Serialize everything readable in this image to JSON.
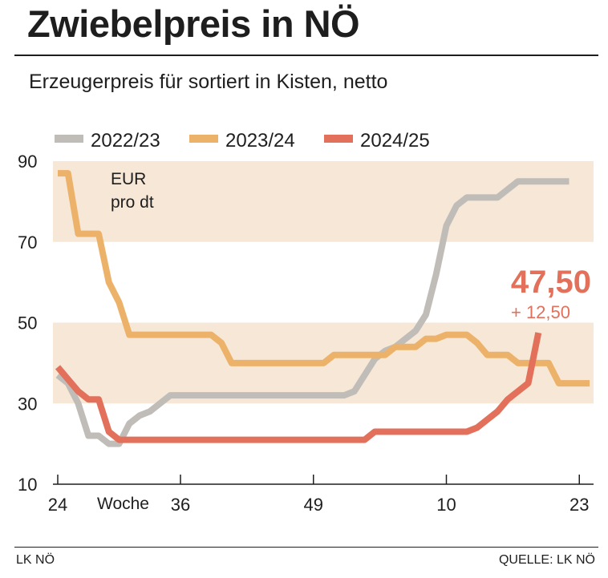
{
  "header": {
    "title": "Zwiebelpreis in NÖ",
    "subtitle": "Erzeugerpreis für sortiert in Kisten, netto"
  },
  "footer": {
    "left": "LK NÖ",
    "right": "QUELLE: LK NÖ"
  },
  "colors": {
    "band": "#f6e7d7",
    "axis": "#1e1e1e",
    "s2022": "#c0bdb9",
    "s2023": "#ecb26a",
    "s2024": "#e2705a"
  },
  "chart_data": {
    "type": "line",
    "title": "Zwiebelpreis in NÖ",
    "subtitle": "Erzeugerpreis für sortiert in Kisten, netto",
    "unit_label": [
      "EUR",
      "pro dt"
    ],
    "xlabel": "Woche",
    "ylabel": "EUR pro dt",
    "ylim": [
      10,
      90
    ],
    "yticks": [
      10,
      30,
      50,
      70,
      90
    ],
    "shaded_bands": [
      [
        30,
        50
      ],
      [
        70,
        90
      ]
    ],
    "x_ticks": [
      {
        "label": "24",
        "index": 0
      },
      {
        "label": "36",
        "index": 12
      },
      {
        "label": "49",
        "index": 25
      },
      {
        "label": "10",
        "index": 38
      },
      {
        "label": "23",
        "index": 51
      }
    ],
    "x_range": [
      0,
      52
    ],
    "legend_position": "top",
    "series": [
      {
        "name": "2022/23",
        "color": "#c0bdb9",
        "x": [
          0,
          1,
          2,
          3,
          4,
          5,
          6,
          7,
          8,
          9,
          10,
          11,
          12,
          13,
          14,
          15,
          16,
          17,
          18,
          19,
          20,
          21,
          22,
          23,
          24,
          25,
          26,
          27,
          28,
          29,
          30,
          31,
          32,
          33,
          34,
          35,
          36,
          37,
          38,
          39,
          40,
          41,
          42,
          43,
          44,
          45,
          46,
          47,
          48,
          49,
          50
        ],
        "values": [
          37,
          35,
          30,
          22,
          22,
          20,
          20,
          25,
          27,
          28,
          30,
          32,
          32,
          32,
          32,
          32,
          32,
          32,
          32,
          32,
          32,
          32,
          32,
          32,
          32,
          32,
          32,
          32,
          32,
          33,
          37,
          41,
          43,
          44,
          46,
          48,
          52,
          62,
          74,
          79,
          81,
          81,
          81,
          81,
          83,
          85,
          85,
          85,
          85,
          85,
          85
        ]
      },
      {
        "name": "2023/24",
        "color": "#ecb26a",
        "x": [
          0,
          1,
          2,
          3,
          4,
          5,
          6,
          7,
          8,
          9,
          10,
          11,
          12,
          13,
          14,
          15,
          16,
          17,
          18,
          19,
          20,
          21,
          22,
          23,
          24,
          25,
          26,
          27,
          28,
          29,
          30,
          31,
          32,
          33,
          34,
          35,
          36,
          37,
          38,
          39,
          40,
          41,
          42,
          43,
          44,
          45,
          46,
          47,
          48,
          49,
          50,
          51,
          52
        ],
        "values": [
          87,
          87,
          72,
          72,
          72,
          60,
          55,
          47,
          47,
          47,
          47,
          47,
          47,
          47,
          47,
          47,
          45,
          40,
          40,
          40,
          40,
          40,
          40,
          40,
          40,
          40,
          40,
          42,
          42,
          42,
          42,
          42,
          42,
          44,
          44,
          44,
          46,
          46,
          47,
          47,
          47,
          45,
          42,
          42,
          42,
          40,
          40,
          40,
          40,
          35,
          35,
          35,
          35
        ]
      },
      {
        "name": "2024/25",
        "color": "#e2705a",
        "x": [
          0,
          1,
          2,
          3,
          4,
          5,
          6,
          7,
          8,
          9,
          10,
          11,
          12,
          13,
          14,
          15,
          16,
          17,
          18,
          19,
          20,
          21,
          22,
          23,
          24,
          25,
          26,
          27,
          28,
          29,
          30,
          31,
          32,
          33,
          34,
          35,
          36,
          37,
          38,
          39,
          40,
          41,
          42,
          43,
          44,
          45,
          46,
          47
        ],
        "values": [
          39,
          36,
          33,
          31,
          31,
          23,
          21,
          21,
          21,
          21,
          21,
          21,
          21,
          21,
          21,
          21,
          21,
          21,
          21,
          21,
          21,
          21,
          21,
          21,
          21,
          21,
          21,
          21,
          21,
          21,
          21,
          23,
          23,
          23,
          23,
          23,
          23,
          23,
          23,
          23,
          23,
          24,
          26,
          28,
          31,
          33,
          35,
          47.5
        ]
      }
    ],
    "annotation": {
      "value_label": "47,50",
      "change_label": "+ 12,50",
      "series": "2024/25"
    }
  }
}
